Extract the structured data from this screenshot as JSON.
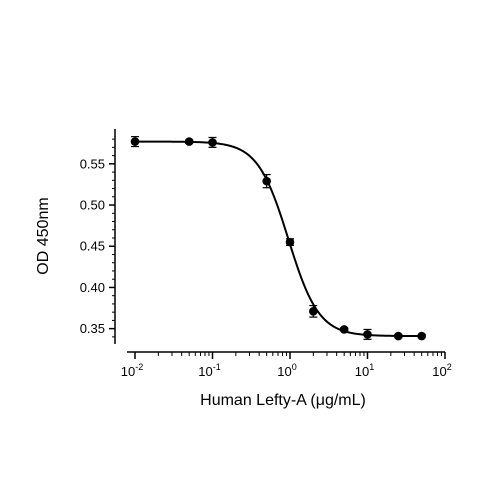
{
  "chart_data": {
    "type": "scatter",
    "title": "",
    "xlabel": "Human Lefty-A (μg/mL)",
    "ylabel": "OD 450nm",
    "x_scale": "log",
    "xlim": [
      0.01,
      100
    ],
    "ylim": [
      0.335,
      0.585
    ],
    "x_ticks": [
      {
        "value": 0.01,
        "base": "10",
        "exp": "-2"
      },
      {
        "value": 0.1,
        "base": "10",
        "exp": "-1"
      },
      {
        "value": 1,
        "base": "10",
        "exp": "0"
      },
      {
        "value": 10,
        "base": "10",
        "exp": "1"
      },
      {
        "value": 100,
        "base": "10",
        "exp": "2"
      }
    ],
    "y_ticks": [
      {
        "value": 0.35,
        "label": "0.35"
      },
      {
        "value": 0.4,
        "label": "0.40"
      },
      {
        "value": 0.45,
        "label": "0.45"
      },
      {
        "value": 0.5,
        "label": "0.50"
      },
      {
        "value": 0.55,
        "label": "0.55"
      }
    ],
    "grid": false,
    "series": [
      {
        "color": "#000000",
        "points": [
          {
            "x": 0.01,
            "y": 0.577,
            "err": 0.006
          },
          {
            "x": 0.05,
            "y": 0.577,
            "err": 0.002
          },
          {
            "x": 0.1,
            "y": 0.576,
            "err": 0.006
          },
          {
            "x": 0.5,
            "y": 0.529,
            "err": 0.008
          },
          {
            "x": 1.0,
            "y": 0.455,
            "err": 0.004
          },
          {
            "x": 2.0,
            "y": 0.371,
            "err": 0.007
          },
          {
            "x": 5.0,
            "y": 0.349,
            "err": 0.002
          },
          {
            "x": 10.0,
            "y": 0.343,
            "err": 0.006
          },
          {
            "x": 25.0,
            "y": 0.341,
            "err": 0.002
          },
          {
            "x": 50.0,
            "y": 0.341,
            "err": 0.002
          }
        ],
        "fit": {
          "model": "4PL",
          "top": 0.577,
          "bottom": 0.341,
          "ec50": 0.95,
          "hill": 2.2
        }
      }
    ]
  }
}
